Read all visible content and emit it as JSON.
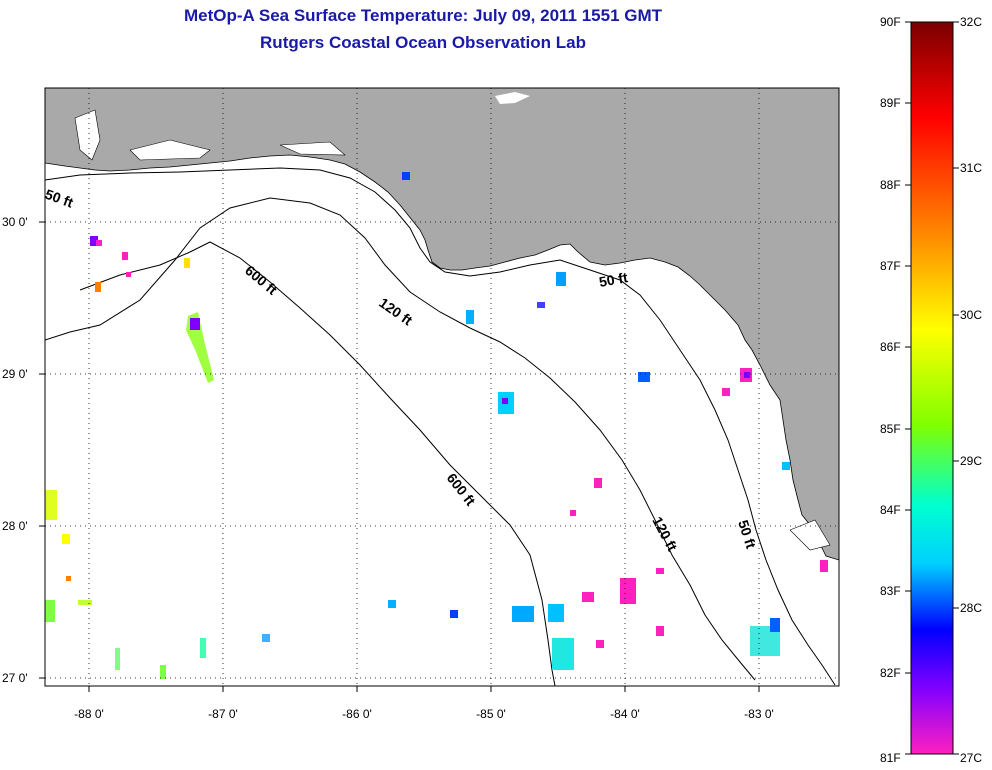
{
  "header": {
    "title_line1": "MetOp-A Sea Surface Temperature:  July 09, 2011 1551 GMT",
    "title_line2": "Rutgers Coastal Ocean Observation Lab"
  },
  "map": {
    "lon_ticks": [
      "-88 0'",
      "-87 0'",
      "-86 0'",
      "-85 0'",
      "-84 0'",
      "-83 0'"
    ],
    "lat_ticks": [
      "30 0'",
      "29 0'",
      "28 0'",
      "27 0'"
    ],
    "depth_labels": {
      "d50_west": "50 ft",
      "d600_upper": "600 ft",
      "d120_upper": "120 ft",
      "d50_upper": "50 ft",
      "d600_lower": "600 ft",
      "d120_lower": "120 ft",
      "d50_lower": "50 ft"
    },
    "colors": {
      "land": "#a9a9a9",
      "ocean": "#ffffff",
      "contour": "#000000"
    }
  },
  "colorbar": {
    "f_labels": [
      "90F",
      "89F",
      "88F",
      "87F",
      "86F",
      "85F",
      "84F",
      "83F",
      "82F",
      "81F"
    ],
    "c_labels": [
      "32C",
      "31C",
      "30C",
      "29C",
      "28C",
      "27C"
    ],
    "stops": [
      "#7a0000",
      "#ff0000",
      "#ff8000",
      "#ffff00",
      "#80ff00",
      "#00ffd0",
      "#00d0ff",
      "#0000ff",
      "#8000ff",
      "#ff20c0"
    ]
  }
}
